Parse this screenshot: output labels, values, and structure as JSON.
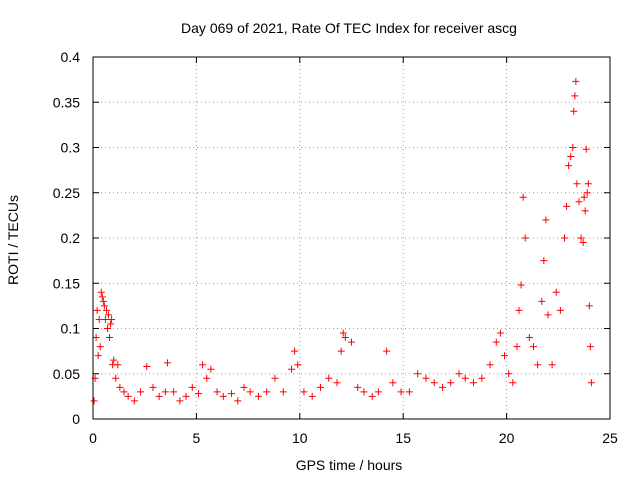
{
  "chart_data": {
    "type": "scatter",
    "title": "Day 069 of 2021, Rate Of TEC Index for receiver ascg",
    "xlabel": "GPS time / hours",
    "ylabel": "ROTI / TECUs",
    "xlim": [
      0,
      25
    ],
    "ylim": [
      0,
      0.4
    ],
    "xticks": [
      0,
      5,
      10,
      15,
      20,
      25
    ],
    "xtick_labels": [
      "0",
      "5",
      "10",
      "15",
      "20",
      "25"
    ],
    "yticks": [
      0,
      0.05,
      0.1,
      0.15,
      0.2,
      0.25,
      0.3,
      0.35,
      0.4
    ],
    "ytick_labels": [
      "0",
      "0.05",
      "0.1",
      "0.15",
      "0.2",
      "0.25",
      "0.3",
      "0.35",
      "0.4"
    ],
    "grid": true,
    "marker": "+",
    "color": "#ff0000",
    "points": [
      [
        0.05,
        0.02
      ],
      [
        0.1,
        0.045
      ],
      [
        0.15,
        0.09
      ],
      [
        0.2,
        0.12
      ],
      [
        0.25,
        0.07
      ],
      [
        0.3,
        0.11
      ],
      [
        0.35,
        0.08
      ],
      [
        0.4,
        0.14
      ],
      [
        0.45,
        0.135
      ],
      [
        0.5,
        0.13
      ],
      [
        0.55,
        0.125
      ],
      [
        0.6,
        0.11
      ],
      [
        0.65,
        0.12
      ],
      [
        0.7,
        0.1
      ],
      [
        0.75,
        0.115
      ],
      [
        0.8,
        0.09
      ],
      [
        0.85,
        0.105
      ],
      [
        0.9,
        0.11
      ],
      [
        0.95,
        0.06
      ],
      [
        1.0,
        0.065
      ],
      [
        1.1,
        0.045
      ],
      [
        1.2,
        0.06
      ],
      [
        1.3,
        0.035
      ],
      [
        1.5,
        0.03
      ],
      [
        1.7,
        0.025
      ],
      [
        2.0,
        0.02
      ],
      [
        2.3,
        0.03
      ],
      [
        2.6,
        0.058
      ],
      [
        2.9,
        0.035
      ],
      [
        3.2,
        0.025
      ],
      [
        3.5,
        0.03
      ],
      [
        3.6,
        0.062
      ],
      [
        3.9,
        0.03
      ],
      [
        4.2,
        0.02
      ],
      [
        4.5,
        0.025
      ],
      [
        4.8,
        0.035
      ],
      [
        5.1,
        0.028
      ],
      [
        5.3,
        0.06
      ],
      [
        5.5,
        0.045
      ],
      [
        5.7,
        0.055
      ],
      [
        6.0,
        0.03
      ],
      [
        6.3,
        0.025
      ],
      [
        6.7,
        0.028
      ],
      [
        7.0,
        0.02
      ],
      [
        7.3,
        0.035
      ],
      [
        7.6,
        0.03
      ],
      [
        8.0,
        0.025
      ],
      [
        8.4,
        0.03
      ],
      [
        8.8,
        0.045
      ],
      [
        9.2,
        0.03
      ],
      [
        9.6,
        0.055
      ],
      [
        9.75,
        0.075
      ],
      [
        9.9,
        0.06
      ],
      [
        10.2,
        0.03
      ],
      [
        10.6,
        0.025
      ],
      [
        11.0,
        0.035
      ],
      [
        11.4,
        0.045
      ],
      [
        11.8,
        0.04
      ],
      [
        12.0,
        0.075
      ],
      [
        12.1,
        0.095
      ],
      [
        12.2,
        0.09
      ],
      [
        12.5,
        0.085
      ],
      [
        12.8,
        0.035
      ],
      [
        13.1,
        0.03
      ],
      [
        13.5,
        0.025
      ],
      [
        13.8,
        0.03
      ],
      [
        14.2,
        0.075
      ],
      [
        14.5,
        0.04
      ],
      [
        14.9,
        0.03
      ],
      [
        15.3,
        0.03
      ],
      [
        15.7,
        0.05
      ],
      [
        16.1,
        0.045
      ],
      [
        16.5,
        0.04
      ],
      [
        16.9,
        0.035
      ],
      [
        17.3,
        0.04
      ],
      [
        17.7,
        0.05
      ],
      [
        18.0,
        0.045
      ],
      [
        18.4,
        0.04
      ],
      [
        18.8,
        0.045
      ],
      [
        19.2,
        0.06
      ],
      [
        19.5,
        0.085
      ],
      [
        19.7,
        0.095
      ],
      [
        19.9,
        0.07
      ],
      [
        20.1,
        0.05
      ],
      [
        20.3,
        0.04
      ],
      [
        20.5,
        0.08
      ],
      [
        20.6,
        0.12
      ],
      [
        20.7,
        0.148
      ],
      [
        20.8,
        0.245
      ],
      [
        20.9,
        0.2
      ],
      [
        21.1,
        0.09
      ],
      [
        21.3,
        0.08
      ],
      [
        21.5,
        0.06
      ],
      [
        21.7,
        0.13
      ],
      [
        21.8,
        0.175
      ],
      [
        21.9,
        0.22
      ],
      [
        22.0,
        0.115
      ],
      [
        22.2,
        0.06
      ],
      [
        22.4,
        0.14
      ],
      [
        22.6,
        0.12
      ],
      [
        22.8,
        0.2
      ],
      [
        22.9,
        0.235
      ],
      [
        23.0,
        0.28
      ],
      [
        23.1,
        0.29
      ],
      [
        23.2,
        0.3
      ],
      [
        23.25,
        0.34
      ],
      [
        23.3,
        0.357
      ],
      [
        23.35,
        0.373
      ],
      [
        23.4,
        0.26
      ],
      [
        23.5,
        0.24
      ],
      [
        23.6,
        0.2
      ],
      [
        23.7,
        0.195
      ],
      [
        23.75,
        0.245
      ],
      [
        23.8,
        0.23
      ],
      [
        23.85,
        0.298
      ],
      [
        23.9,
        0.25
      ],
      [
        23.95,
        0.26
      ],
      [
        24.0,
        0.125
      ],
      [
        24.05,
        0.08
      ],
      [
        24.1,
        0.04
      ]
    ]
  }
}
